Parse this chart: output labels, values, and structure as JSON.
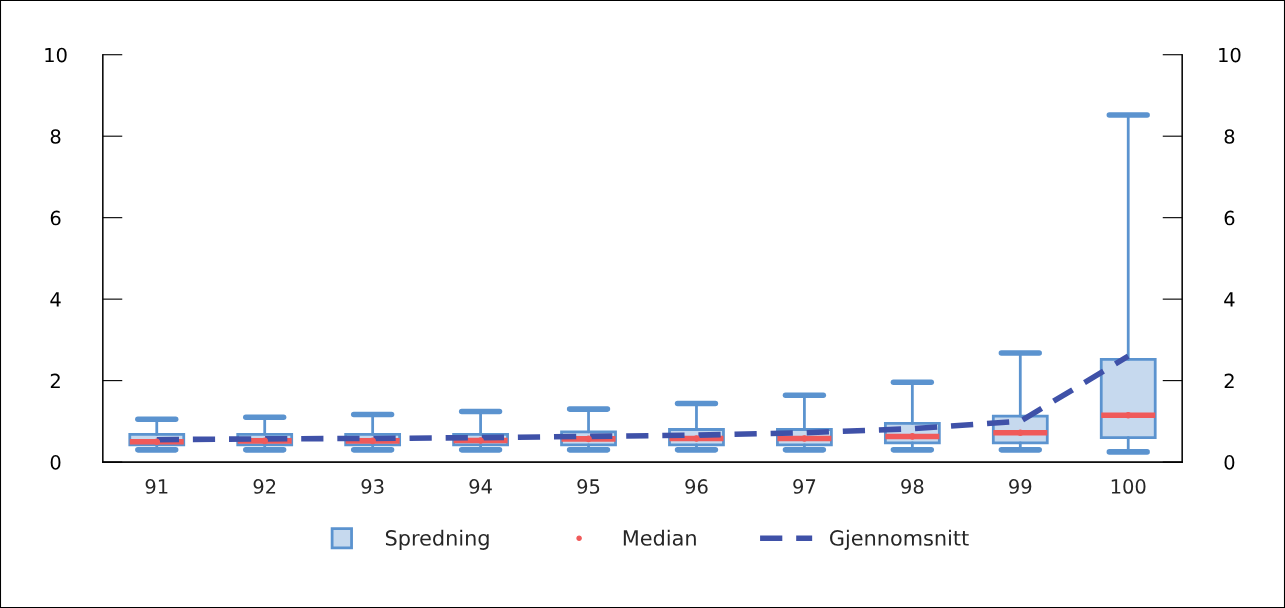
{
  "chart_data": {
    "type": "box",
    "categories": [
      "91",
      "92",
      "93",
      "94",
      "95",
      "96",
      "97",
      "98",
      "99",
      "100"
    ],
    "series": [
      {
        "name": "Spredning",
        "color": "#5b93cf",
        "boxes": [
          {
            "low": 0.3,
            "q1": 0.42,
            "median": 0.5,
            "q3": 0.68,
            "high": 1.05
          },
          {
            "low": 0.3,
            "q1": 0.42,
            "median": 0.52,
            "q3": 0.68,
            "high": 1.1
          },
          {
            "low": 0.3,
            "q1": 0.42,
            "median": 0.52,
            "q3": 0.68,
            "high": 1.17
          },
          {
            "low": 0.3,
            "q1": 0.42,
            "median": 0.53,
            "q3": 0.68,
            "high": 1.24
          },
          {
            "low": 0.3,
            "q1": 0.42,
            "median": 0.57,
            "q3": 0.74,
            "high": 1.3
          },
          {
            "low": 0.3,
            "q1": 0.42,
            "median": 0.58,
            "q3": 0.8,
            "high": 1.44
          },
          {
            "low": 0.3,
            "q1": 0.42,
            "median": 0.58,
            "q3": 0.8,
            "high": 1.64
          },
          {
            "low": 0.3,
            "q1": 0.47,
            "median": 0.63,
            "q3": 0.95,
            "high": 1.96
          },
          {
            "low": 0.3,
            "q1": 0.47,
            "median": 0.72,
            "q3": 1.13,
            "high": 2.68
          },
          {
            "low": 0.25,
            "q1": 0.6,
            "median": 1.15,
            "q3": 2.52,
            "high": 8.52
          }
        ]
      },
      {
        "name": "Median",
        "type": "scatter",
        "color": "#f05a5a",
        "values": [
          0.5,
          0.52,
          0.52,
          0.53,
          0.57,
          0.58,
          0.58,
          0.63,
          0.72,
          1.15
        ]
      },
      {
        "name": "Gjennomsnitt",
        "type": "line",
        "color": "#3f51a8",
        "line_style": "dashed",
        "values": [
          0.55,
          0.57,
          0.58,
          0.6,
          0.63,
          0.66,
          0.72,
          0.82,
          1.0,
          2.6
        ]
      }
    ],
    "ylim": [
      0,
      10
    ],
    "yticks": [
      0,
      2,
      4,
      6,
      8,
      10
    ],
    "y2lim": [
      0,
      10
    ],
    "y2ticks": [
      0,
      2,
      4,
      6,
      8,
      10
    ],
    "grid": false,
    "legend": "bottom"
  }
}
